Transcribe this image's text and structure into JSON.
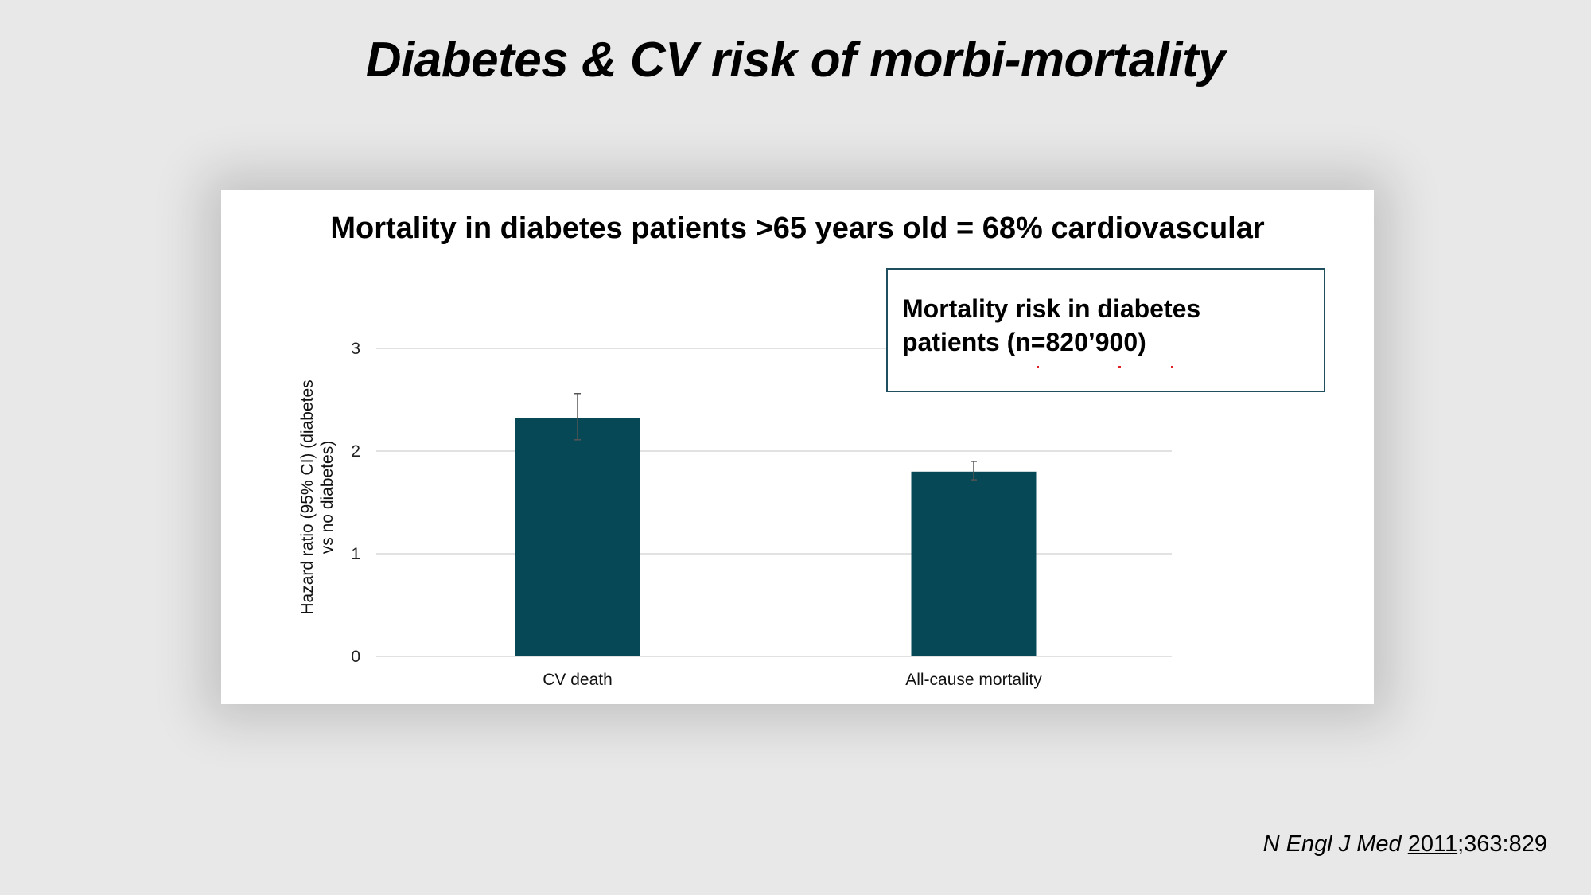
{
  "slide": {
    "title": "Diabetes & CV risk of morbi-mortality"
  },
  "figure": {
    "heading": "Mortality in diabetes patients >65 years old = 68% cardiovascular",
    "annotation": "Mortality risk in diabetes patients (n=820’900)"
  },
  "chart_data": {
    "type": "bar",
    "title": "",
    "xlabel": "",
    "ylabel": "Hazard ratio (95% CI) (diabetes vs no diabetes)",
    "ylabel_lines": [
      "Hazard ratio (95% CI) (diabetes",
      "vs no diabetes)"
    ],
    "categories": [
      "CV death",
      "All-cause mortality"
    ],
    "values": [
      2.32,
      1.8
    ],
    "ci_lower": [
      2.11,
      1.72
    ],
    "ci_upper": [
      2.56,
      1.9
    ],
    "ylim": [
      0,
      3
    ],
    "yticks": [
      0,
      1,
      2,
      3
    ],
    "grid": true,
    "bar_color": "#064856"
  },
  "citation": {
    "journal": "N Engl J Med ",
    "year": "2011",
    "rest": ";363:829"
  },
  "colors": {
    "background": "#e8e8e8",
    "bar": "#064856",
    "box_border": "#1f4e5f",
    "grid": "#d9d9d9"
  }
}
